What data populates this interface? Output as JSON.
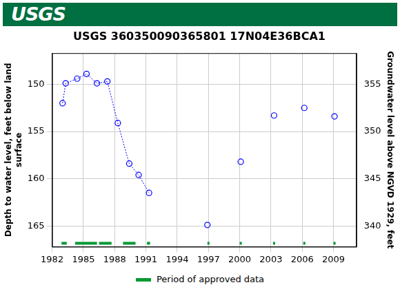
{
  "banner": {
    "text": "USGS"
  },
  "chart_data": {
    "type": "scatter",
    "title": "USGS 360350090365801 17N04E36BCA1",
    "y_label": [
      "Depth to water level, feet below land",
      "surface"
    ],
    "y2_label": "Groundwater level above NGVD 1929, feet",
    "xlim": [
      1982,
      2011.2
    ],
    "xticks": [
      1982,
      1985,
      1988,
      1991,
      1994,
      1997,
      2000,
      2003,
      2006,
      2009
    ],
    "ylim": [
      167.2,
      146.7
    ],
    "yticks": [
      150,
      155,
      160,
      165
    ],
    "y2lim": [
      337.8,
      358.3
    ],
    "y2ticks": [
      340,
      345,
      350,
      355
    ],
    "grid": true,
    "series": [
      {
        "color": "#0000ff",
        "marker": "circle",
        "line_style": "dotted",
        "x": [
          1983.0,
          1983.3,
          1984.4,
          1985.3,
          1986.3,
          1987.3,
          1988.3,
          1989.4,
          1990.3,
          1991.3
        ],
        "values": [
          152.0,
          149.9,
          149.4,
          148.9,
          149.9,
          149.7,
          154.1,
          158.4,
          159.6,
          161.5
        ]
      },
      {
        "color": "#0000ff",
        "marker": "circle",
        "line_style": "none",
        "x": [
          1996.9,
          2000.1,
          2003.3,
          2006.2,
          2009.1
        ],
        "values": [
          164.9,
          158.2,
          153.3,
          152.5,
          153.4
        ]
      },
      {
        "name": "Period of approved data",
        "color": "#009933",
        "type": "interval",
        "periods": [
          [
            1982.9,
            1983.4
          ],
          [
            1984.2,
            1986.3
          ],
          [
            1986.5,
            1987.7
          ],
          [
            1988.8,
            1990.0
          ],
          [
            1991.1,
            1991.4
          ],
          [
            1996.9,
            1997.1
          ],
          [
            2000.0,
            2000.2
          ],
          [
            2003.2,
            2003.4
          ],
          [
            2006.1,
            2006.3
          ],
          [
            2009.0,
            2009.2
          ]
        ]
      }
    ]
  }
}
